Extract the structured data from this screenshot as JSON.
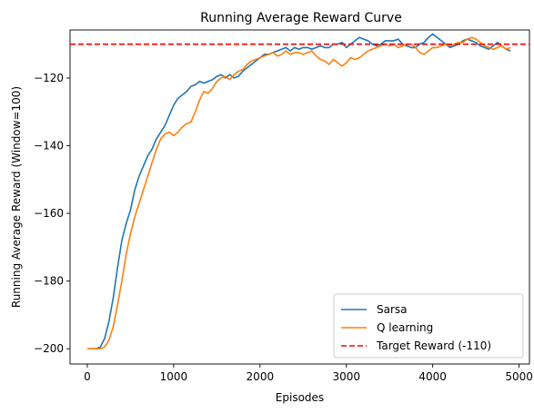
{
  "chart_data": {
    "type": "line",
    "title": "Running Average Reward Curve",
    "xlabel": "Episodes",
    "ylabel": "Running Average Reward (Window=100)",
    "xlim": [
      -200,
      5120
    ],
    "ylim": [
      -204.5,
      -105.8
    ],
    "xticks": [
      0,
      1000,
      2000,
      3000,
      4000,
      5000
    ],
    "xtick_labels": [
      "0",
      "1000",
      "2000",
      "3000",
      "4000",
      "5000"
    ],
    "yticks": [
      -200,
      -180,
      -160,
      -140,
      -120
    ],
    "ytick_labels": [
      "−200",
      "−180",
      "−160",
      "−140",
      "−120"
    ],
    "grid": false,
    "legend_position": "lower-right",
    "series": [
      {
        "name": "Sarsa",
        "color": "#1f77b4",
        "x": [
          0,
          100,
          150,
          200,
          250,
          300,
          350,
          400,
          450,
          500,
          550,
          600,
          650,
          700,
          750,
          800,
          850,
          900,
          950,
          1000,
          1050,
          1100,
          1150,
          1200,
          1250,
          1300,
          1350,
          1400,
          1450,
          1500,
          1550,
          1600,
          1650,
          1700,
          1750,
          1800,
          1850,
          1900,
          1950,
          2000,
          2050,
          2100,
          2150,
          2200,
          2250,
          2300,
          2350,
          2400,
          2450,
          2500,
          2550,
          2600,
          2650,
          2700,
          2750,
          2800,
          2850,
          2900,
          2950,
          3000,
          3050,
          3100,
          3150,
          3200,
          3250,
          3300,
          3350,
          3400,
          3450,
          3500,
          3550,
          3600,
          3650,
          3700,
          3750,
          3800,
          3850,
          3900,
          3950,
          4000,
          4050,
          4100,
          4150,
          4200,
          4250,
          4300,
          4350,
          4400,
          4450,
          4500,
          4550,
          4600,
          4650,
          4700,
          4750,
          4800,
          4850,
          4900
        ],
        "values": [
          -200,
          -200,
          -199.5,
          -197,
          -192,
          -185,
          -176,
          -168,
          -163,
          -159,
          -153,
          -149,
          -146,
          -143,
          -141,
          -138,
          -136,
          -134,
          -131,
          -128,
          -126,
          -125,
          -124,
          -122.5,
          -122,
          -121,
          -121.5,
          -121,
          -120.5,
          -119.5,
          -119,
          -120,
          -119,
          -120,
          -119.5,
          -118,
          -117,
          -116,
          -115,
          -114,
          -113,
          -113,
          -112.5,
          -112,
          -111.5,
          -111,
          -112,
          -111,
          -111.5,
          -111,
          -111,
          -111.5,
          -111,
          -110.5,
          -111,
          -111,
          -110,
          -110,
          -109.5,
          -111,
          -110,
          -109,
          -108,
          -108.5,
          -109,
          -110,
          -110.5,
          -110,
          -109,
          -109,
          -109,
          -108.5,
          -110,
          -110.5,
          -111,
          -111,
          -110,
          -109.5,
          -108,
          -107,
          -108,
          -109,
          -110,
          -111,
          -110.5,
          -110,
          -109,
          -108.5,
          -109,
          -109.5,
          -110.5,
          -111,
          -111.5,
          -110.5,
          -109.5,
          -110.5,
          -111.5,
          -112
        ]
      },
      {
        "name": "Q learning",
        "color": "#ff7f0e",
        "x": [
          0,
          100,
          150,
          200,
          250,
          300,
          350,
          400,
          450,
          500,
          550,
          600,
          650,
          700,
          750,
          800,
          850,
          900,
          950,
          1000,
          1050,
          1100,
          1150,
          1200,
          1250,
          1300,
          1350,
          1400,
          1450,
          1500,
          1550,
          1600,
          1650,
          1700,
          1750,
          1800,
          1850,
          1900,
          1950,
          2000,
          2050,
          2100,
          2150,
          2200,
          2250,
          2300,
          2350,
          2400,
          2450,
          2500,
          2550,
          2600,
          2650,
          2700,
          2750,
          2800,
          2850,
          2900,
          2950,
          3000,
          3050,
          3100,
          3150,
          3200,
          3250,
          3300,
          3350,
          3400,
          3450,
          3500,
          3550,
          3600,
          3650,
          3700,
          3750,
          3800,
          3850,
          3900,
          3950,
          4000,
          4050,
          4100,
          4150,
          4200,
          4250,
          4300,
          4350,
          4400,
          4450,
          4500,
          4550,
          4600,
          4650,
          4700,
          4750,
          4800,
          4850,
          4900
        ],
        "values": [
          -200,
          -200,
          -200,
          -199.5,
          -197.5,
          -193.5,
          -187,
          -180,
          -172,
          -166,
          -161,
          -157,
          -153,
          -149,
          -145,
          -141,
          -138,
          -136.5,
          -136,
          -137,
          -136,
          -134.5,
          -133.5,
          -133,
          -130,
          -126.5,
          -124,
          -124.5,
          -123,
          -121,
          -120,
          -119.5,
          -120.5,
          -119,
          -118,
          -117.5,
          -116,
          -115,
          -114.5,
          -114,
          -113.5,
          -113,
          -112.5,
          -113.5,
          -113,
          -112,
          -113,
          -112.5,
          -112.5,
          -113,
          -112.5,
          -112,
          -113.5,
          -114.5,
          -115,
          -116,
          -114.5,
          -115.5,
          -116.5,
          -115.5,
          -114,
          -114.5,
          -114,
          -113,
          -112,
          -111.5,
          -111,
          -110.5,
          -110,
          -110.5,
          -110,
          -111,
          -110.5,
          -110,
          -110,
          -111,
          -112.5,
          -113,
          -112,
          -111,
          -111,
          -110.5,
          -110,
          -110.5,
          -110,
          -109.5,
          -109.5,
          -108.5,
          -108,
          -108.5,
          -109.5,
          -110.5,
          -111,
          -111.5,
          -111,
          -110.5,
          -111.5,
          -111
        ]
      },
      {
        "name": "Target Reward (-110)",
        "color": "#ff0000",
        "style": "dashed",
        "constant_y": -110
      }
    ]
  }
}
